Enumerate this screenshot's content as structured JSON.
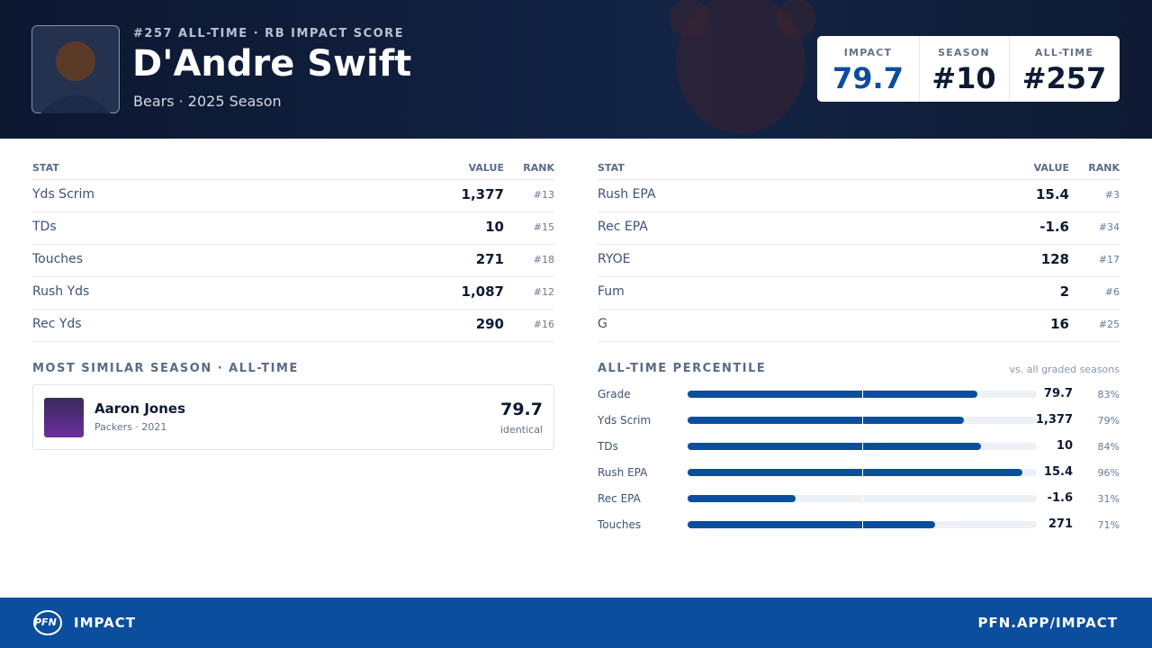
{
  "header": {
    "rank_line": "#257 ALL-TIME · RB IMPACT SCORE",
    "name": "D'Andre Swift",
    "subtitle": "Bears · 2025 Season",
    "scores": [
      {
        "label": "IMPACT",
        "value": "79.7"
      },
      {
        "label": "SEASON",
        "value": "#10"
      },
      {
        "label": "ALL-TIME",
        "value": "#257"
      }
    ]
  },
  "stats_left": {
    "columns": [
      "STAT",
      "VALUE",
      "RANK"
    ],
    "rows": [
      [
        "Yds Scrim",
        "1,377",
        "#13"
      ],
      [
        "TDs",
        "10",
        "#15"
      ],
      [
        "Touches",
        "271",
        "#18"
      ],
      [
        "Rush Yds",
        "1,087",
        "#12"
      ],
      [
        "Rec Yds",
        "290",
        "#16"
      ]
    ]
  },
  "stats_right": {
    "columns": [
      "STAT",
      "VALUE",
      "RANK"
    ],
    "rows": [
      [
        "Rush EPA",
        "15.4",
        "#3"
      ],
      [
        "Rec EPA",
        "-1.6",
        "#34"
      ],
      [
        "RYOE",
        "128",
        "#17"
      ],
      [
        "Fum",
        "2",
        "#6"
      ],
      [
        "G",
        "16",
        "#25"
      ]
    ]
  },
  "similar": {
    "title": "MOST SIMILAR SEASON · ALL-TIME",
    "name": "Aaron Jones",
    "detail": "Packers · 2021",
    "score": "79.7",
    "note": "identical"
  },
  "percentiles": {
    "title": "ALL-TIME PERCENTILE",
    "note": "vs. all graded seasons",
    "rows": [
      {
        "stat": "Grade",
        "value": "79.7",
        "percentile": 83,
        "percentile_label": "83%"
      },
      {
        "stat": "Yds Scrim",
        "value": "1,377",
        "percentile": 79,
        "percentile_label": "79%"
      },
      {
        "stat": "TDs",
        "value": "10",
        "percentile": 84,
        "percentile_label": "84%"
      },
      {
        "stat": "Rush EPA",
        "value": "15.4",
        "percentile": 96,
        "percentile_label": "96%"
      },
      {
        "stat": "Rec EPA",
        "value": "-1.6",
        "percentile": 31,
        "percentile_label": "31%"
      },
      {
        "stat": "Touches",
        "value": "271",
        "percentile": 71,
        "percentile_label": "71%"
      }
    ]
  },
  "footer": {
    "logo": "PFN",
    "brand": "IMPACT",
    "url": "PFN.APP/IMPACT"
  }
}
